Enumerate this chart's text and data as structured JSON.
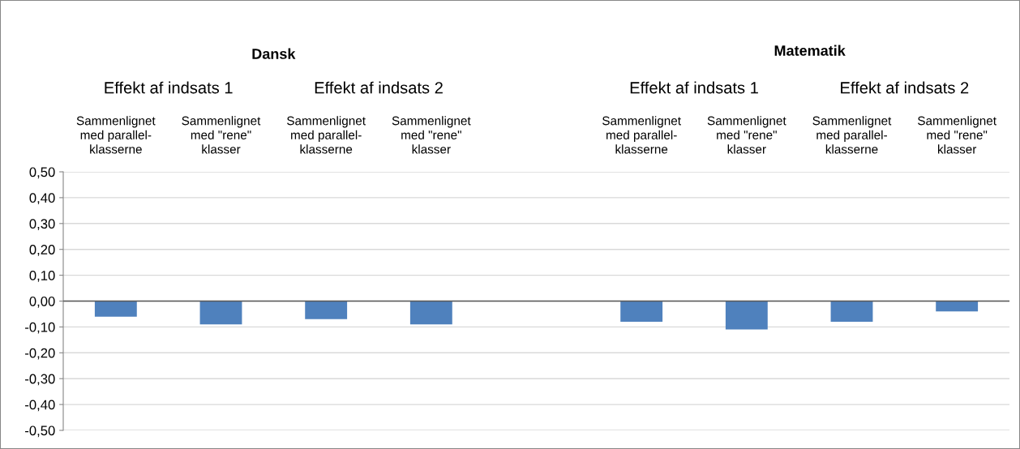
{
  "chart_data": {
    "type": "bar",
    "categories": [
      "Sammenlignet\nmed parallel-\nklasserne",
      "Sammenlignet\nmed \"rene\"\nklasser",
      "Sammenlignet\nmed parallel-\nklasserne",
      "Sammenlignet\nmed \"rene\"\nklasser",
      null,
      "Sammenlignet\nmed parallel-\nklasserne",
      "Sammenlignet\nmed \"rene\"\nklasser",
      "Sammenlignet\nmed parallel-\nklasserne",
      "Sammenlignet\nmed \"rene\"\nklasser"
    ],
    "values": [
      -0.06,
      -0.09,
      -0.07,
      -0.09,
      null,
      -0.08,
      -0.11,
      -0.08,
      -0.04
    ],
    "color": "#4f81bd",
    "ylim": [
      -0.5,
      0.5
    ],
    "yticks": [
      {
        "value": -0.5,
        "label": "-0,50"
      },
      {
        "value": -0.4,
        "label": "-0,40"
      },
      {
        "value": -0.3,
        "label": "-0,30"
      },
      {
        "value": -0.2,
        "label": "-0,20"
      },
      {
        "value": -0.1,
        "label": "-0,10"
      },
      {
        "value": 0,
        "label": "0,00"
      },
      {
        "value": 0.1,
        "label": "0,10"
      },
      {
        "value": 0.2,
        "label": "0,20"
      },
      {
        "value": 0.3,
        "label": "0,30"
      },
      {
        "value": 0.4,
        "label": "0,40"
      },
      {
        "value": 0.5,
        "label": "0,50"
      }
    ],
    "grid": "y",
    "annotations": [
      "Dansk",
      "Effekt af indsats 1",
      "Effekt af indsats 2",
      "Matematik",
      "Effekt af indsats 1",
      "Effekt af indsats 2"
    ]
  }
}
